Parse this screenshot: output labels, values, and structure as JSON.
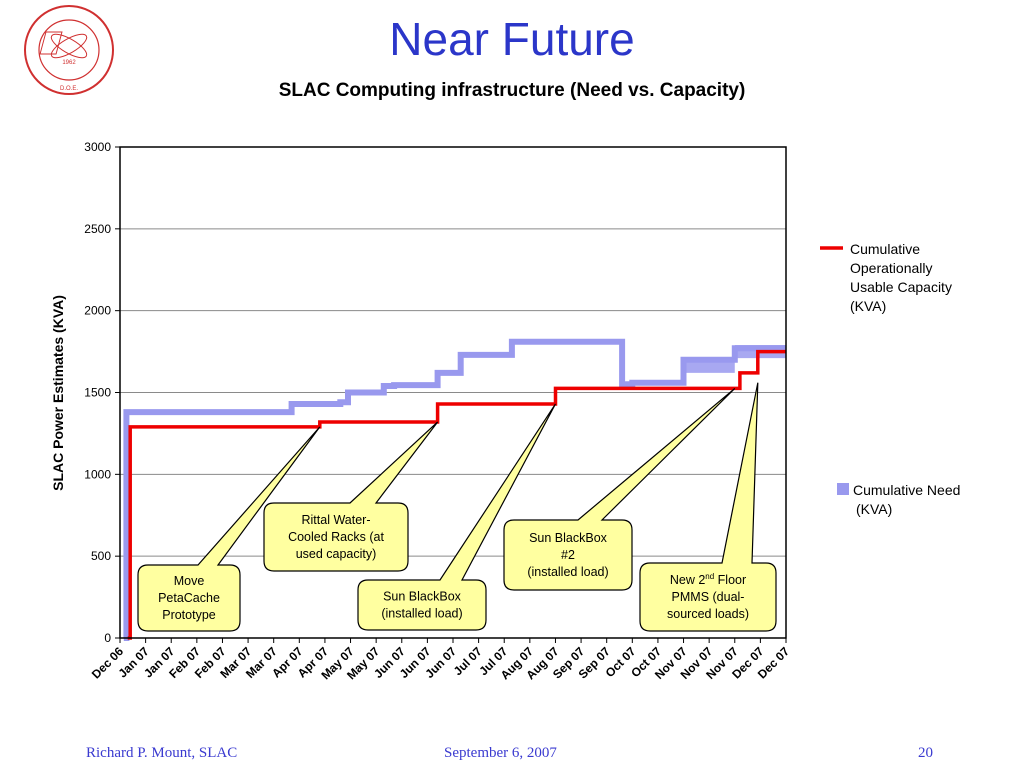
{
  "slide": {
    "title": "Near Future",
    "subtitle": "SLAC Computing infrastructure (Need vs. Capacity)",
    "logo_text": "STANFORD LINEAR ACCELERATOR CENTER",
    "logo_established": "ESTABLISHED 1962",
    "logo_doe": "D.O.E."
  },
  "footer": {
    "author": "Richard P. Mount,   SLAC",
    "date": "September 6, 2007",
    "page": "20"
  },
  "colors": {
    "title": "#2b36c9",
    "capacity": "#ee0000",
    "need": "#9999ee",
    "callout_fill": "#ffffa0",
    "footer": "#3a3ad0"
  },
  "chart_data": {
    "type": "line",
    "ylabel": "SLAC Power Estimates (KVA)",
    "xlabel": "",
    "ylim": [
      0,
      3000
    ],
    "yticks": [
      0,
      500,
      1000,
      1500,
      2000,
      2500,
      3000
    ],
    "grid": true,
    "legend_position": "right",
    "xlim": [
      0,
      26
    ],
    "categories": [
      "Dec 06",
      "Jan 07",
      "Jan 07",
      "Feb 07",
      "Feb 07",
      "Mar 07",
      "Mar 07",
      "Apr 07",
      "Apr 07",
      "May 07",
      "May 07",
      "Jun 07",
      "Jun 07",
      "Jun 07",
      "Jul 07",
      "Jul 07",
      "Aug 07",
      "Aug 07",
      "Sep 07",
      "Sep 07",
      "Oct 07",
      "Oct 07",
      "Nov 07",
      "Nov 07",
      "Nov 07",
      "Dec 07",
      "Dec 07"
    ],
    "series": [
      {
        "name": "Cumulative Operationally Usable Capacity (KVA)",
        "legend_lines": [
          "Cumulative",
          "Operationally",
          "Usable Capacity",
          "(KVA)"
        ],
        "color": "#ee0000",
        "x": [
          0.3,
          0.3,
          0.4,
          0.4,
          7.8,
          7.8,
          12.4,
          12.4,
          17.0,
          17.0,
          24.2,
          24.2,
          24.9,
          24.9,
          26.0
        ],
        "y": [
          0,
          0,
          0,
          1290,
          1290,
          1320,
          1320,
          1430,
          1430,
          1525,
          1525,
          1620,
          1620,
          1750,
          1750
        ]
      },
      {
        "name": "Cumulative Need (KVA)",
        "legend_lines": [
          "Cumulative Need",
          "(KVA)"
        ],
        "color": "#9999ee",
        "x": [
          0.15,
          0.15,
          0.25,
          0.25,
          6.7,
          6.7,
          8.6,
          8.6,
          8.9,
          8.9,
          10.3,
          10.3,
          10.7,
          10.7,
          12.4,
          12.4,
          13.3,
          13.3,
          15.3,
          15.3,
          16.4,
          16.4,
          19.6,
          19.6,
          20.0,
          20.0,
          22.0,
          22.0,
          24.0,
          24.0,
          26.0
        ],
        "y": [
          0,
          0,
          0,
          1380,
          1380,
          1430,
          1430,
          1440,
          1440,
          1500,
          1500,
          1540,
          1540,
          1545,
          1545,
          1620,
          1620,
          1730,
          1730,
          1810,
          1810,
          1810,
          1810,
          1550,
          1550,
          1560,
          1560,
          1700,
          1700,
          1770,
          1770
        ]
      }
    ],
    "annotations": [
      {
        "lines": [
          "Move",
          "PetaCache",
          "Prototype"
        ],
        "target": [
          7.8,
          1290
        ]
      },
      {
        "lines": [
          "Rittal Water-",
          "Cooled Racks (at",
          "used capacity)"
        ],
        "target": [
          12.4,
          1320
        ]
      },
      {
        "lines": [
          "Sun BlackBox",
          "(installed load)"
        ],
        "target": [
          17.0,
          1430
        ]
      },
      {
        "lines": [
          "Sun BlackBox",
          "#2",
          "(installed load)"
        ],
        "target": [
          24.0,
          1525
        ]
      },
      {
        "lines": [
          "New 2nd Floor",
          "PMMS (dual-",
          "sourced loads)"
        ],
        "target": [
          24.9,
          1560
        ]
      }
    ]
  }
}
